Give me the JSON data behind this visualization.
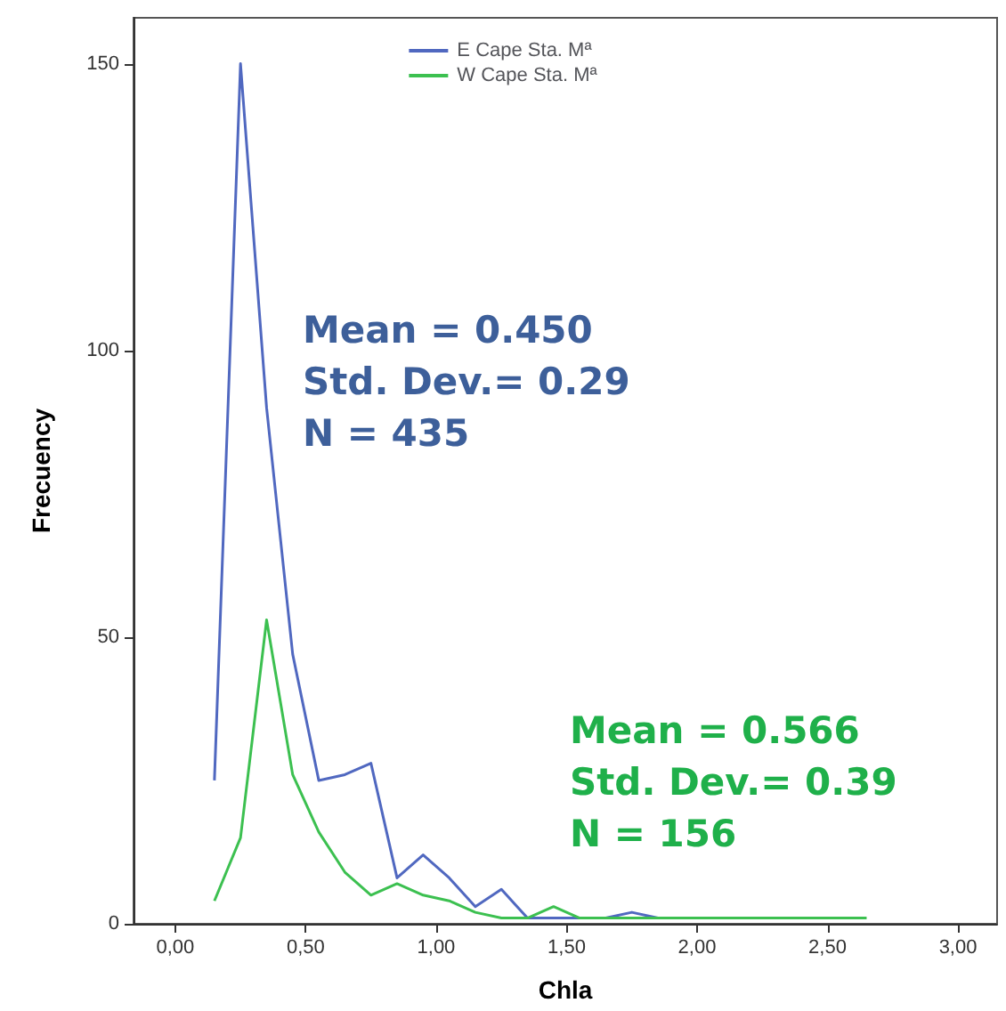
{
  "chart_data": {
    "type": "line",
    "xlabel": "Chla",
    "ylabel": "Frecuency",
    "x": [
      0.15,
      0.25,
      0.35,
      0.45,
      0.55,
      0.65,
      0.75,
      0.85,
      0.95,
      1.05,
      1.15,
      1.25,
      1.35,
      1.45,
      1.55,
      1.65,
      1.75,
      1.85,
      1.95,
      2.05,
      2.15,
      2.25,
      2.35,
      2.45,
      2.55,
      2.65
    ],
    "series": [
      {
        "name": "E Cape Sta. Mª",
        "color": "#5068c0",
        "values": [
          25,
          150,
          90,
          47,
          25,
          26,
          28,
          8,
          12,
          8,
          3,
          6,
          1,
          1,
          1,
          1,
          2,
          1,
          null,
          null,
          null,
          null,
          null,
          null,
          null,
          null
        ]
      },
      {
        "name": "W Cape Sta. Mª",
        "color": "#3cc050",
        "values": [
          4,
          15,
          53,
          26,
          16,
          9,
          5,
          7,
          5,
          4,
          2,
          1,
          1,
          3,
          1,
          1,
          1,
          1,
          1,
          1,
          1,
          1,
          1,
          1,
          1,
          1
        ]
      }
    ],
    "annotations": [
      "Mean = 0.450",
      "Std. Dev.= 0.29",
      "N = 435",
      "Mean = 0.566",
      "Std. Dev.= 0.39",
      "N = 156"
    ],
    "xlim": [
      -0.16,
      3.15
    ],
    "ylim": [
      0,
      158
    ],
    "xticks": [
      {
        "value": 0,
        "label": "0,00"
      },
      {
        "value": 0.5,
        "label": "0,50"
      },
      {
        "value": 1,
        "label": "1,00"
      },
      {
        "value": 1.5,
        "label": "1,50"
      },
      {
        "value": 2,
        "label": "2,00"
      },
      {
        "value": 2.5,
        "label": "2,50"
      },
      {
        "value": 3,
        "label": "3,00"
      }
    ],
    "yticks": [
      0,
      50,
      100,
      150
    ],
    "grid": false,
    "legend": "top",
    "marker": "none",
    "line_style": "solid"
  }
}
